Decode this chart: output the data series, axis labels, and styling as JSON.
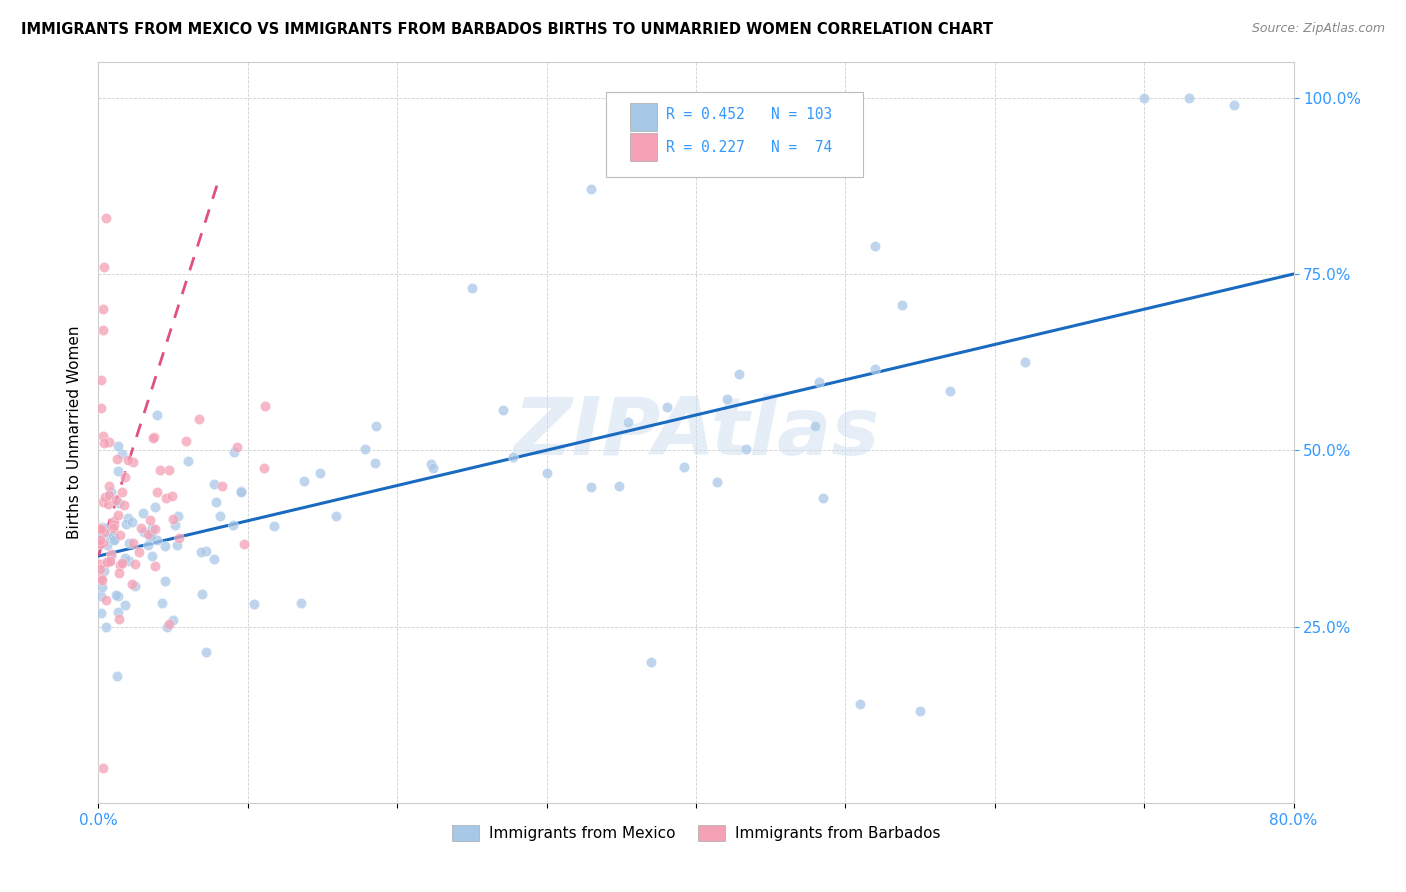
{
  "title": "IMMIGRANTS FROM MEXICO VS IMMIGRANTS FROM BARBADOS BIRTHS TO UNMARRIED WOMEN CORRELATION CHART",
  "source": "Source: ZipAtlas.com",
  "ylabel": "Births to Unmarried Women",
  "watermark": "ZIPAtlas",
  "xmin": 0.0,
  "xmax": 0.8,
  "ymin": 0.0,
  "ymax": 1.05,
  "mexico_color": "#a8c8e8",
  "barbados_color": "#f4a0b5",
  "trendline_mexico_color": "#1a6bbf",
  "trendline_barbados_color": "#e05080",
  "R_mexico": 0.452,
  "N_mexico": 103,
  "R_barbados": 0.227,
  "N_barbados": 74,
  "grid_color": "#d0d0d0",
  "ytick_color": "#3399ff",
  "xtick_color": "#3399ff"
}
